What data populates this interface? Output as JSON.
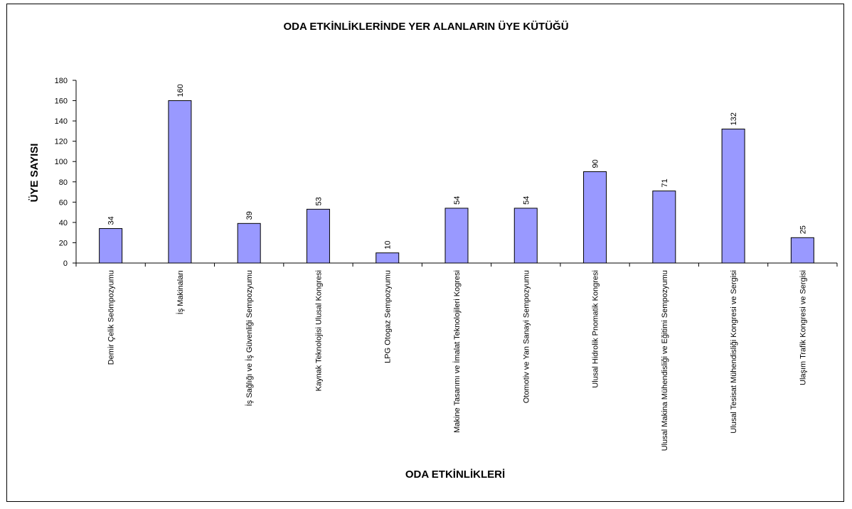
{
  "chart_data": {
    "type": "bar",
    "title": "ODA ETKİNLİKLERİNDE YER ALANLARIN ÜYE KÜTÜĞÜ",
    "xlabel": "ODA ETKİNLİKLERİ",
    "ylabel": "ÜYE SAYISI",
    "ylim": [
      0,
      180
    ],
    "yticks": [
      0,
      20,
      40,
      60,
      80,
      100,
      120,
      140,
      160,
      180
    ],
    "categories": [
      "Demir Çelik Seömpozyumu",
      "İş Makinaları",
      "İş Sağlığı ve İş Güvenliği Sempozyumu",
      "Kaynak Teknolojisi Ulusal Kongresi",
      "LPG Otogaz Sempozyumu",
      "Makine Tasarımı ve İmalat Teknolojileri Kogresi",
      "Otomotiv ve Yan Sanayi Sempozyumu",
      "Ulusal Hidrolik Pnomatik Kongresi",
      "Ulusal Makina Mühendisliği ve Eğitimi Sempozyumu",
      "Ulusal Tesisat Mühendisliği Kongresi ve Sergisi",
      "Ulaşım Trafik Kongresi ve Sergisi"
    ],
    "values": [
      34,
      160,
      39,
      53,
      10,
      54,
      54,
      90,
      71,
      132,
      25
    ],
    "bar_color": "#9999ff",
    "bar_border": "#000000",
    "grid": false,
    "legend": "none",
    "data_labels": true
  }
}
